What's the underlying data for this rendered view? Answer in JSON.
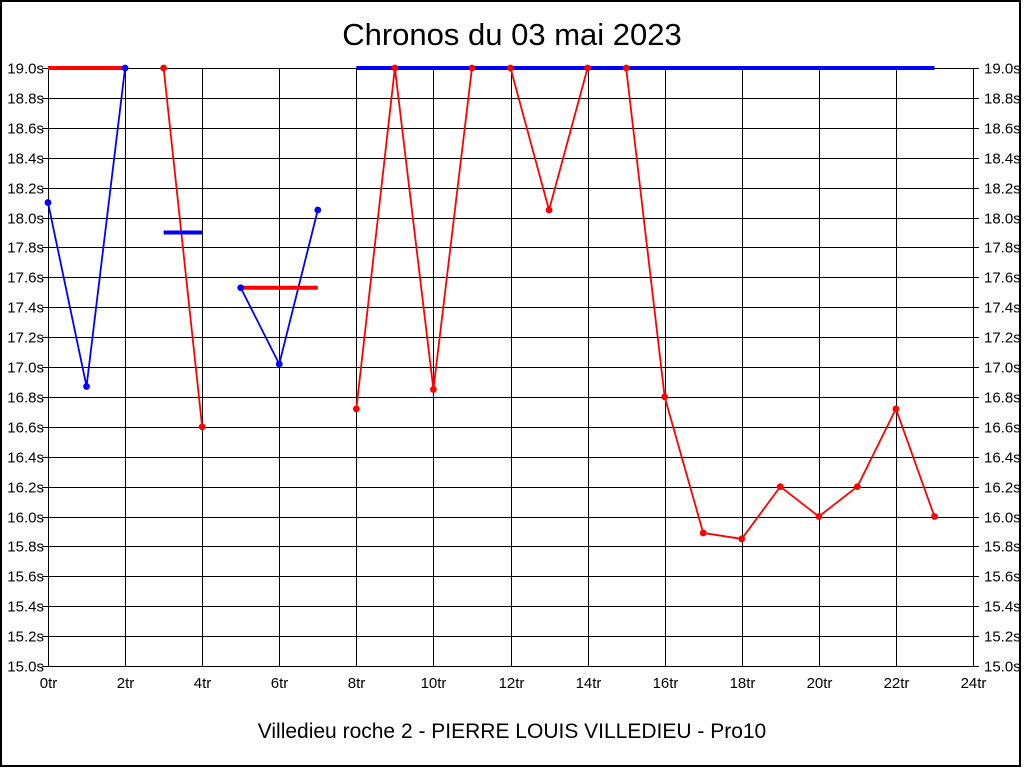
{
  "title": "Chronos du 03 mai 2023",
  "footer": "Villedieu roche 2 - PIERRE LOUIS VILLEDIEU - Pro10",
  "colors": {
    "red": "#ff0000",
    "blue": "#0000ff",
    "grid": "#000000",
    "background": "#ffffff"
  },
  "chart_data": {
    "type": "line",
    "title": "Chronos du 03 mai 2023",
    "subtitle": "Villedieu roche 2 - PIERRE LOUIS VILLEDIEU - Pro10",
    "x_unit": "tr",
    "y_unit": "s",
    "xlim": [
      0,
      24
    ],
    "ylim": [
      15.0,
      19.0
    ],
    "x_tick_step": 2,
    "y_tick_step": 0.2,
    "grid": true,
    "legend": "none",
    "x_tick_labels": [
      "0tr",
      "2tr",
      "4tr",
      "6tr",
      "8tr",
      "10tr",
      "12tr",
      "14tr",
      "16tr",
      "18tr",
      "20tr",
      "22tr",
      "24tr"
    ],
    "y_tick_labels": [
      "19.0s",
      "18.8s",
      "18.6s",
      "18.4s",
      "18.2s",
      "18.0s",
      "17.8s",
      "17.6s",
      "17.4s",
      "17.2s",
      "17.0s",
      "16.8s",
      "16.6s",
      "16.4s",
      "16.2s",
      "16.0s",
      "15.8s",
      "15.6s",
      "15.4s",
      "15.2s",
      "15.0s"
    ],
    "series": [
      {
        "name": "red-rider",
        "color": "#ff0000",
        "marker": "circle",
        "segments": [
          [
            [
              3,
              19.0
            ],
            [
              4,
              16.6
            ]
          ],
          [
            [
              8,
              16.72
            ],
            [
              9,
              19.0
            ],
            [
              10,
              16.85
            ],
            [
              11,
              19.0
            ],
            [
              12,
              19.0
            ],
            [
              13,
              18.05
            ],
            [
              14,
              19.0
            ],
            [
              15,
              19.0
            ],
            [
              16,
              16.8
            ],
            [
              17,
              15.89
            ],
            [
              18,
              15.85
            ],
            [
              19,
              16.2
            ],
            [
              20,
              16.0
            ],
            [
              21,
              16.2
            ],
            [
              22,
              16.72
            ],
            [
              23,
              16.0
            ]
          ]
        ]
      },
      {
        "name": "blue-rider",
        "color": "#0000ff",
        "marker": "circle",
        "segments": [
          [
            [
              0,
              18.1
            ],
            [
              1,
              16.87
            ],
            [
              2,
              19.0
            ]
          ],
          [
            [
              5,
              17.53
            ],
            [
              6,
              17.02
            ],
            [
              7,
              18.05
            ]
          ]
        ]
      }
    ],
    "reference_bars": [
      {
        "color": "#ff0000",
        "x_start": 0,
        "x_end": 2,
        "y": 19.0
      },
      {
        "color": "#0000ff",
        "x_start": 3,
        "x_end": 4,
        "y": 17.9
      },
      {
        "color": "#ff0000",
        "x_start": 5,
        "x_end": 7,
        "y": 17.53
      },
      {
        "color": "#0000ff",
        "x_start": 8,
        "x_end": 23,
        "y": 19.0
      }
    ]
  }
}
